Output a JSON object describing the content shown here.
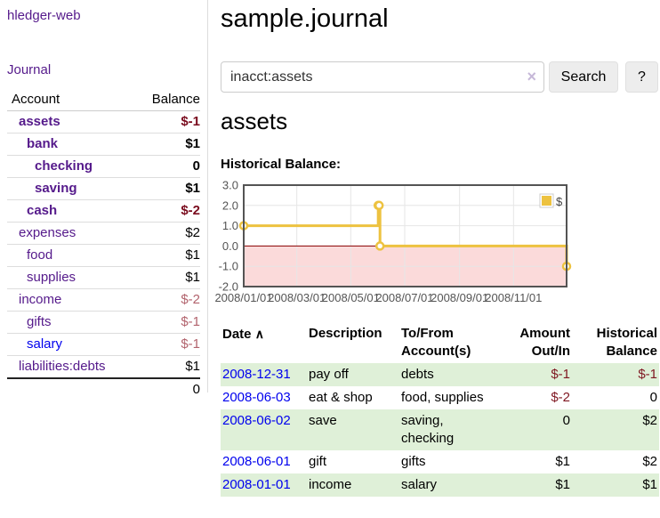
{
  "sidebar": {
    "brand": "hledger-web",
    "nav_journal": "Journal",
    "accounts_table": {
      "header_account": "Account",
      "header_balance": "Balance",
      "rows": [
        {
          "name": "assets",
          "balance": "$-1"
        },
        {
          "name": "bank",
          "balance": "$1"
        },
        {
          "name": "checking",
          "balance": "0"
        },
        {
          "name": "saving",
          "balance": "$1"
        },
        {
          "name": "cash",
          "balance": "$-2"
        },
        {
          "name": "expenses",
          "balance": "$2"
        },
        {
          "name": "food",
          "balance": "$1"
        },
        {
          "name": "supplies",
          "balance": "$1"
        },
        {
          "name": "income",
          "balance": "$-2"
        },
        {
          "name": "gifts",
          "balance": "$-1"
        },
        {
          "name": "salary",
          "balance": "$-1"
        },
        {
          "name": "liabilities:debts",
          "balance": "$1"
        }
      ],
      "total": "0"
    }
  },
  "header": {
    "title": "sample.journal"
  },
  "search": {
    "value": "inacct:assets",
    "clear_icon": "×",
    "button_label": "Search",
    "help_label": "?"
  },
  "account_page": {
    "heading": "assets",
    "chart_label": "Historical Balance:"
  },
  "chart_data": {
    "type": "line",
    "steps": true,
    "title": "Historical Balance:",
    "xrange": [
      "2008-01-01",
      "2008-12-31"
    ],
    "ylim": [
      -2,
      3
    ],
    "yticks": [
      "3.0",
      "2.0",
      "1.0",
      "0.0",
      "-1.0",
      "-2.0"
    ],
    "xticks": [
      "2008/01/01",
      "2008/03/01",
      "2008/05/01",
      "2008/07/01",
      "2008/09/01",
      "2008/11/01"
    ],
    "series": [
      {
        "name": "$",
        "color": "#edc240",
        "points": [
          [
            "2008-01-01",
            1
          ],
          [
            "2008-06-01",
            2
          ],
          [
            "2008-06-02",
            2
          ],
          [
            "2008-06-03",
            0
          ],
          [
            "2008-12-31",
            -1
          ]
        ]
      }
    ],
    "legend_position": "top-right",
    "grid": true,
    "colors": {
      "negative_fill": "#fbdada",
      "zero_line": "#8b0000",
      "gridline": "#e6e6e6",
      "border": "#545454",
      "tick_text": "#545454",
      "legend_border": "#ccc"
    }
  },
  "register": {
    "col_date": "Date",
    "sort_icon": "∧",
    "col_description": "Description",
    "col_accounts": "To/From Account(s)",
    "col_amount": "Amount Out/In",
    "col_balance": "Historical Balance",
    "rows": [
      {
        "date": "2008-12-31",
        "description": "pay off",
        "accounts": "debts",
        "amount": "$-1",
        "balance": "$-1"
      },
      {
        "date": "2008-06-03",
        "description": "eat & shop",
        "accounts": "food, supplies",
        "amount": "$-2",
        "balance": "0"
      },
      {
        "date": "2008-06-02",
        "description": "save",
        "accounts": "saving, checking",
        "amount": "0",
        "balance": "$2"
      },
      {
        "date": "2008-06-01",
        "description": "gift",
        "accounts": "gifts",
        "amount": "$1",
        "balance": "$2"
      },
      {
        "date": "2008-01-01",
        "description": "income",
        "accounts": "salary",
        "amount": "$1",
        "balance": "$1"
      }
    ]
  },
  "colors": {
    "link_blue": "#0000ee",
    "link_visited_purple": "#551a8b",
    "negative_strong": "#7a0c1e",
    "negative_dim": "#b2636d",
    "row_stripe_green": "#dff0d8",
    "series_gold": "#edc240"
  }
}
